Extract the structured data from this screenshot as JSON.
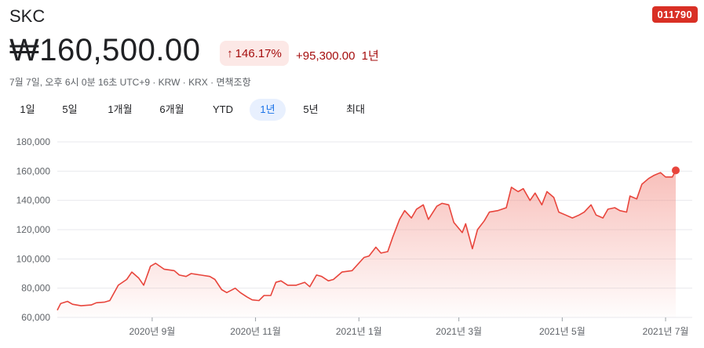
{
  "header": {
    "name": "SKC",
    "ticker": "011790",
    "price": "₩160,500.00",
    "change_pct": "146.17%",
    "change_arrow": "↑",
    "change_value": "+95,300.00",
    "change_period": "1년",
    "meta": "7월 7일, 오후 6시 0분 16초 UTC+9 · KRW · KRX · 면책조항"
  },
  "tabs": [
    {
      "label": "1일"
    },
    {
      "label": "5일"
    },
    {
      "label": "1개월"
    },
    {
      "label": "6개월"
    },
    {
      "label": "YTD"
    },
    {
      "label": "1년"
    },
    {
      "label": "5년"
    },
    {
      "label": "최대"
    }
  ],
  "active_tab": "1년",
  "colors": {
    "line": "#e8453c",
    "fill_top": "#f28b82",
    "grid": "#e8eaed",
    "text_muted": "#5f6368",
    "active_tab_bg": "#e8f0fe",
    "active_tab_text": "#1a73e8"
  },
  "chart_data": {
    "type": "area",
    "title": "",
    "xlabel": "",
    "ylabel": "",
    "ylim": [
      60000,
      180000
    ],
    "yticks": [
      60000,
      80000,
      100000,
      120000,
      140000,
      160000,
      180000
    ],
    "ytick_labels": [
      "60,000",
      "80,000",
      "100,000",
      "120,000",
      "140,000",
      "160,000",
      "180,000"
    ],
    "xlim": [
      "2020-07-07",
      "2021-07-07"
    ],
    "xticks": [
      {
        "date": "2020-09-01",
        "label": "2020년 9월"
      },
      {
        "date": "2020-11-01",
        "label": "2020년 11월"
      },
      {
        "date": "2021-01-01",
        "label": "2021년 1월"
      },
      {
        "date": "2021-03-01",
        "label": "2021년 3월"
      },
      {
        "date": "2021-05-01",
        "label": "2021년 5월"
      },
      {
        "date": "2021-07-01",
        "label": "2021년 7월"
      }
    ],
    "grid": true,
    "series": [
      {
        "points": [
          [
            "2020-07-07",
            65000
          ],
          [
            "2020-07-09",
            69500
          ],
          [
            "2020-07-13",
            71000
          ],
          [
            "2020-07-16",
            69000
          ],
          [
            "2020-07-21",
            68000
          ],
          [
            "2020-07-27",
            68500
          ],
          [
            "2020-07-30",
            70000
          ],
          [
            "2020-08-04",
            70500
          ],
          [
            "2020-08-07",
            71500
          ],
          [
            "2020-08-12",
            82000
          ],
          [
            "2020-08-17",
            86000
          ],
          [
            "2020-08-20",
            91000
          ],
          [
            "2020-08-24",
            87000
          ],
          [
            "2020-08-27",
            82000
          ],
          [
            "2020-08-31",
            95000
          ],
          [
            "2020-09-03",
            97000
          ],
          [
            "2020-09-08",
            93000
          ],
          [
            "2020-09-14",
            92000
          ],
          [
            "2020-09-17",
            89000
          ],
          [
            "2020-09-21",
            88000
          ],
          [
            "2020-09-24",
            90000
          ],
          [
            "2020-10-05",
            88000
          ],
          [
            "2020-10-08",
            86000
          ],
          [
            "2020-10-12",
            79000
          ],
          [
            "2020-10-15",
            77000
          ],
          [
            "2020-10-20",
            80000
          ],
          [
            "2020-10-23",
            77000
          ],
          [
            "2020-10-27",
            74000
          ],
          [
            "2020-10-30",
            72000
          ],
          [
            "2020-11-03",
            71500
          ],
          [
            "2020-11-06",
            75000
          ],
          [
            "2020-11-10",
            75000
          ],
          [
            "2020-11-13",
            84000
          ],
          [
            "2020-11-16",
            85000
          ],
          [
            "2020-11-20",
            82000
          ],
          [
            "2020-11-25",
            82000
          ],
          [
            "2020-11-30",
            84000
          ],
          [
            "2020-12-03",
            81000
          ],
          [
            "2020-12-07",
            89000
          ],
          [
            "2020-12-10",
            88000
          ],
          [
            "2020-12-14",
            85000
          ],
          [
            "2020-12-17",
            86000
          ],
          [
            "2020-12-22",
            91000
          ],
          [
            "2020-12-28",
            92000
          ],
          [
            "2021-01-04",
            101000
          ],
          [
            "2021-01-07",
            102000
          ],
          [
            "2021-01-11",
            108000
          ],
          [
            "2021-01-14",
            104000
          ],
          [
            "2021-01-18",
            105000
          ],
          [
            "2021-01-21",
            115000
          ],
          [
            "2021-01-25",
            127000
          ],
          [
            "2021-01-28",
            133000
          ],
          [
            "2021-02-01",
            128000
          ],
          [
            "2021-02-04",
            134000
          ],
          [
            "2021-02-08",
            137000
          ],
          [
            "2021-02-11",
            127000
          ],
          [
            "2021-02-16",
            136000
          ],
          [
            "2021-02-19",
            138000
          ],
          [
            "2021-02-23",
            137000
          ],
          [
            "2021-02-26",
            125000
          ],
          [
            "2021-03-03",
            118000
          ],
          [
            "2021-03-05",
            124000
          ],
          [
            "2021-03-09",
            107000
          ],
          [
            "2021-03-12",
            120000
          ],
          [
            "2021-03-16",
            126000
          ],
          [
            "2021-03-19",
            132000
          ],
          [
            "2021-03-24",
            133000
          ],
          [
            "2021-03-29",
            135000
          ],
          [
            "2021-04-01",
            149000
          ],
          [
            "2021-04-05",
            146000
          ],
          [
            "2021-04-08",
            148000
          ],
          [
            "2021-04-12",
            140000
          ],
          [
            "2021-04-15",
            145000
          ],
          [
            "2021-04-19",
            137000
          ],
          [
            "2021-04-22",
            146000
          ],
          [
            "2021-04-26",
            142000
          ],
          [
            "2021-04-29",
            132000
          ],
          [
            "2021-05-03",
            130000
          ],
          [
            "2021-05-07",
            128000
          ],
          [
            "2021-05-11",
            130000
          ],
          [
            "2021-05-14",
            132000
          ],
          [
            "2021-05-18",
            137000
          ],
          [
            "2021-05-21",
            130000
          ],
          [
            "2021-05-25",
            128000
          ],
          [
            "2021-05-28",
            134000
          ],
          [
            "2021-06-01",
            135000
          ],
          [
            "2021-06-04",
            133000
          ],
          [
            "2021-06-08",
            132000
          ],
          [
            "2021-06-10",
            143000
          ],
          [
            "2021-06-14",
            141000
          ],
          [
            "2021-06-17",
            151000
          ],
          [
            "2021-06-21",
            155000
          ],
          [
            "2021-06-24",
            157000
          ],
          [
            "2021-06-28",
            159000
          ],
          [
            "2021-07-01",
            156000
          ],
          [
            "2021-07-05",
            156000
          ],
          [
            "2021-07-07",
            160500
          ]
        ]
      }
    ]
  }
}
